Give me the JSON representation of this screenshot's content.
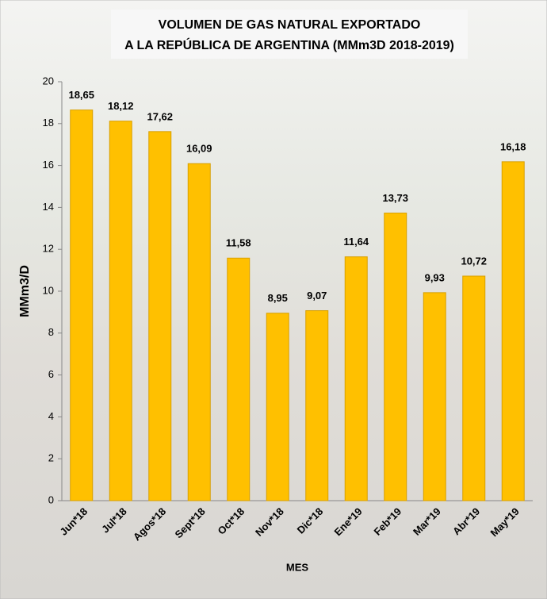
{
  "chart_data": {
    "type": "bar",
    "title": [
      "VOLUMEN DE GAS NATURAL EXPORTADO",
      "A LA REPÚBLICA DE ARGENTINA (MMm3D 2018-2019)"
    ],
    "x_label": "MES",
    "y_label": "MMm3/D",
    "categories": [
      "Jun*18",
      "Jul*18",
      "Agos*18",
      "Sept*18",
      "Oct*18",
      "Nov*18",
      "Dic*18",
      "Ene*19",
      "Feb*19",
      "Mar*19",
      "Abr*19",
      "May*19"
    ],
    "values": [
      18.65,
      18.12,
      17.62,
      16.09,
      11.58,
      8.95,
      9.07,
      11.64,
      13.73,
      9.93,
      10.72,
      16.18
    ],
    "value_labels": [
      "18,65",
      "18,12",
      "17,62",
      "16,09",
      "11,58",
      "8,95",
      "9,07",
      "11,64",
      "13,73",
      "9,93",
      "10,72",
      "16,18"
    ],
    "color": "#ffc000",
    "ylim": [
      0,
      20
    ],
    "yticks": [
      0,
      2,
      4,
      6,
      8,
      10,
      12,
      14,
      16,
      18,
      20
    ]
  }
}
